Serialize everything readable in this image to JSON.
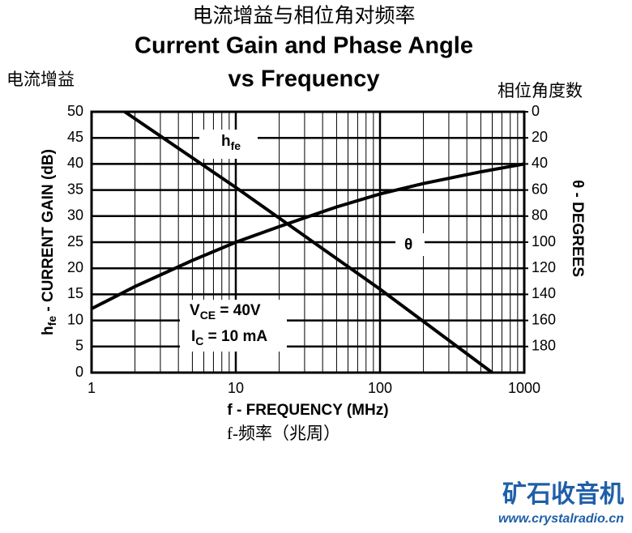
{
  "chart_data": {
    "type": "line",
    "title_cn": "电流增益与相位角对频率",
    "title": "Current Gain and Phase Angle",
    "subtitle": "vs Frequency",
    "ylabel_cn": "电流增益",
    "y2label_cn": "相位角度数",
    "xlabel_cn": "f-频率（兆周）",
    "xlabel": "f - FREQUENCY (MHz)",
    "ylabel": {
      "main": "h",
      "sub": "fe",
      "rest": " - CURRENT GAIN (dB)"
    },
    "y2label": "θ - DEGREES",
    "log_x": true,
    "grid": true,
    "xlim": [
      1,
      1000
    ],
    "xticks": [
      1,
      10,
      100,
      1000
    ],
    "xminorticks": [
      2,
      3,
      4,
      5,
      6,
      7,
      8,
      9,
      20,
      30,
      40,
      50,
      60,
      70,
      80,
      90,
      200,
      300,
      400,
      500,
      600,
      700,
      800,
      900
    ],
    "ylim": [
      0,
      50
    ],
    "yticks": [
      0,
      5,
      10,
      15,
      20,
      25,
      30,
      35,
      40,
      45,
      50
    ],
    "y2lim": [
      200,
      0
    ],
    "y2ticks": [
      0,
      20,
      40,
      60,
      80,
      100,
      120,
      140,
      160,
      180
    ],
    "series": [
      {
        "color": "#000000",
        "x": [
          1.7,
          10,
          100,
          600
        ],
        "values": [
          50,
          35.5,
          16,
          0
        ]
      },
      {
        "color": "#000000",
        "axis": "y2",
        "x": [
          1,
          2,
          5,
          10,
          20,
          50,
          100,
          200,
          500,
          1000
        ],
        "values": [
          151,
          134,
          114,
          100,
          88,
          73,
          63,
          55,
          46,
          40
        ]
      }
    ],
    "annotations": {
      "hfe": {
        "main": "h",
        "sub": "fe"
      },
      "theta": "θ",
      "vce": {
        "main": "V",
        "sub": "CE",
        "rest": " = 40V"
      },
      "ic": {
        "main": "I",
        "sub": "C",
        "rest": " = 10 mA"
      }
    },
    "watermark": {
      "name": "矿石收音机",
      "url": "www.crystalradio.cn"
    }
  }
}
